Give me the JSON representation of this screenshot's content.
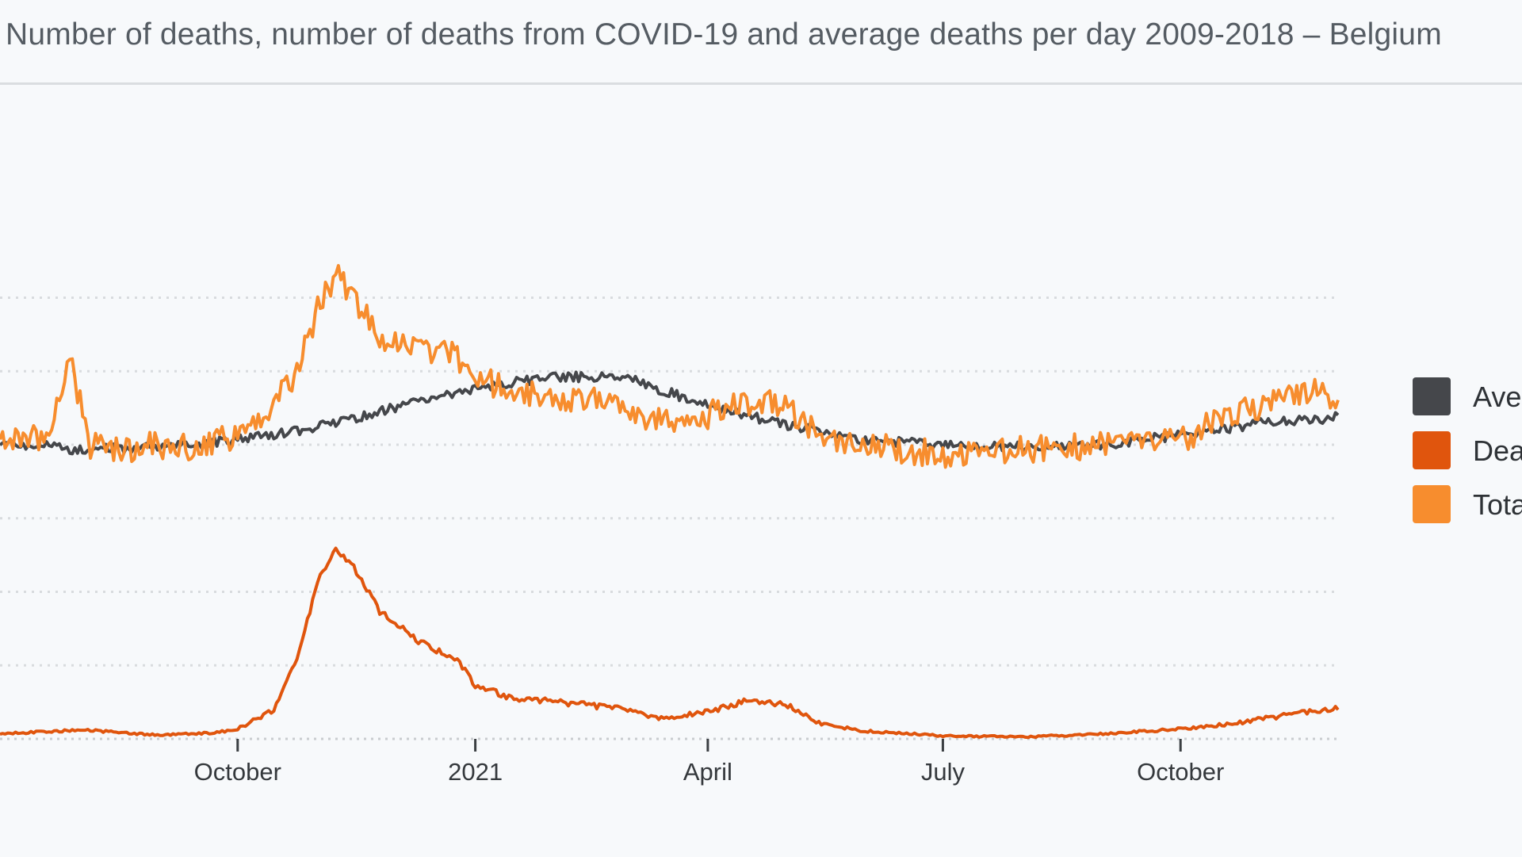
{
  "chart_data": {
    "title": "Number of deaths, number of deaths from COVID-19 and average deaths per day 2009-2018 – Belgium",
    "type": "line",
    "x_range": [
      "2020-07-01",
      "2021-12-01"
    ],
    "ylim": [
      0,
      600
    ],
    "y_gridlines": [
      75,
      150,
      225,
      300,
      375,
      450
    ],
    "grid": true,
    "legend_position": "right",
    "x_ticks": [
      {
        "date": "2020-10-01",
        "label": "October"
      },
      {
        "date": "2021-01-01",
        "label": "2021"
      },
      {
        "date": "2021-04-01",
        "label": "April"
      },
      {
        "date": "2021-07-01",
        "label": "July"
      },
      {
        "date": "2021-10-01",
        "label": "October"
      }
    ],
    "series": [
      {
        "name": "Ave",
        "color": "#45474b",
        "points": [
          [
            "2020-07-01",
            303
          ],
          [
            "2020-08-01",
            295
          ],
          [
            "2020-09-01",
            297
          ],
          [
            "2020-10-01",
            305
          ],
          [
            "2020-11-01",
            318
          ],
          [
            "2020-12-01",
            338
          ],
          [
            "2021-01-01",
            358
          ],
          [
            "2021-02-01",
            370
          ],
          [
            "2021-03-01",
            368
          ],
          [
            "2021-04-01",
            340
          ],
          [
            "2021-05-01",
            320
          ],
          [
            "2021-06-01",
            305
          ],
          [
            "2021-07-01",
            300
          ],
          [
            "2021-08-01",
            298
          ],
          [
            "2021-09-01",
            300
          ],
          [
            "2021-10-01",
            310
          ],
          [
            "2021-11-01",
            322
          ],
          [
            "2021-12-01",
            328
          ]
        ]
      },
      {
        "name": "Dea",
        "color": "#e0550d",
        "points": [
          [
            "2020-07-01",
            5
          ],
          [
            "2020-08-01",
            9
          ],
          [
            "2020-09-01",
            4
          ],
          [
            "2020-09-20",
            6
          ],
          [
            "2020-10-01",
            10
          ],
          [
            "2020-10-15",
            30
          ],
          [
            "2020-10-25",
            90
          ],
          [
            "2020-11-01",
            160
          ],
          [
            "2020-11-08",
            195
          ],
          [
            "2020-11-15",
            175
          ],
          [
            "2020-11-25",
            130
          ],
          [
            "2020-12-10",
            100
          ],
          [
            "2020-12-25",
            80
          ],
          [
            "2021-01-01",
            55
          ],
          [
            "2021-01-15",
            42
          ],
          [
            "2021-02-01",
            38
          ],
          [
            "2021-03-01",
            30
          ],
          [
            "2021-03-15",
            20
          ],
          [
            "2021-04-01",
            28
          ],
          [
            "2021-04-15",
            38
          ],
          [
            "2021-05-01",
            35
          ],
          [
            "2021-05-15",
            15
          ],
          [
            "2021-06-01",
            8
          ],
          [
            "2021-07-01",
            3
          ],
          [
            "2021-08-01",
            2
          ],
          [
            "2021-09-01",
            5
          ],
          [
            "2021-10-01",
            10
          ],
          [
            "2021-10-20",
            15
          ],
          [
            "2021-11-01",
            20
          ],
          [
            "2021-11-20",
            28
          ],
          [
            "2021-12-01",
            32
          ]
        ]
      },
      {
        "name": "Tota",
        "color": "#f78d2e",
        "points": [
          [
            "2020-07-01",
            300
          ],
          [
            "2020-07-20",
            310
          ],
          [
            "2020-07-28",
            390
          ],
          [
            "2020-08-05",
            300
          ],
          [
            "2020-08-15",
            295
          ],
          [
            "2020-09-01",
            300
          ],
          [
            "2020-09-15",
            296
          ],
          [
            "2020-10-01",
            310
          ],
          [
            "2020-10-15",
            340
          ],
          [
            "2020-10-25",
            380
          ],
          [
            "2020-11-01",
            440
          ],
          [
            "2020-11-08",
            475
          ],
          [
            "2020-11-15",
            450
          ],
          [
            "2020-11-25",
            410
          ],
          [
            "2020-12-10",
            395
          ],
          [
            "2020-12-25",
            390
          ],
          [
            "2021-01-01",
            370
          ],
          [
            "2021-01-15",
            355
          ],
          [
            "2021-02-01",
            345
          ],
          [
            "2021-02-15",
            350
          ],
          [
            "2021-03-01",
            330
          ],
          [
            "2021-03-15",
            325
          ],
          [
            "2021-04-01",
            330
          ],
          [
            "2021-04-15",
            345
          ],
          [
            "2021-05-01",
            340
          ],
          [
            "2021-05-15",
            310
          ],
          [
            "2021-06-01",
            300
          ],
          [
            "2021-07-01",
            290
          ],
          [
            "2021-08-01",
            295
          ],
          [
            "2021-09-01",
            300
          ],
          [
            "2021-10-01",
            305
          ],
          [
            "2021-10-20",
            330
          ],
          [
            "2021-11-01",
            340
          ],
          [
            "2021-11-20",
            355
          ],
          [
            "2021-12-01",
            345
          ]
        ]
      }
    ]
  }
}
